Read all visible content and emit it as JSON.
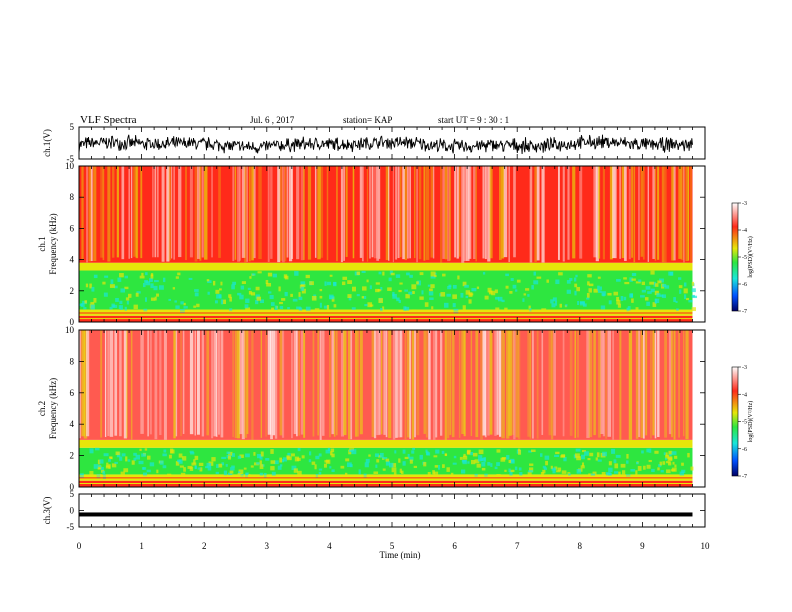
{
  "header": {
    "title": "VLF Spectra",
    "date": "Jul. 6 , 2017",
    "station": "station= KAP",
    "start": "start UT = 9 : 30 : 1"
  },
  "chart_data": [
    {
      "type": "line",
      "panel": "ch1-waveform",
      "ylabel": "ch.1(V)",
      "ylim": [
        -5,
        5
      ],
      "yticks": [
        "5",
        "-5"
      ],
      "xlim": [
        0,
        10
      ],
      "description_values": {
        "mean": -0.5,
        "amplitude": 1.8
      }
    },
    {
      "type": "heatmap",
      "panel": "ch1-spectrogram",
      "ylabel_line1": "ch.1",
      "ylabel_line2": "Frequency (kHz)",
      "ylim": [
        0,
        10
      ],
      "yticks": [
        "0",
        "2",
        "4",
        "6",
        "8",
        "10"
      ],
      "xlim": [
        0,
        10
      ],
      "data_end_min": 9.8,
      "bands": [
        {
          "from_khz": 0.0,
          "to_khz": 0.4,
          "log_psd": -3.6
        },
        {
          "from_khz": 0.4,
          "to_khz": 0.8,
          "log_psd": -4.2
        },
        {
          "from_khz": 0.8,
          "to_khz": 3.3,
          "log_psd": -5.3
        },
        {
          "from_khz": 3.3,
          "to_khz": 3.8,
          "log_psd": -4.6
        },
        {
          "from_khz": 3.8,
          "to_khz": 10.0,
          "log_psd": -3.9
        }
      ],
      "colorbar": {
        "label": "log(PSD)(V²/Hz)",
        "ticks": [
          "-3",
          "-4",
          "-5",
          "-6",
          "-7"
        ],
        "range": [
          -7,
          -3
        ]
      }
    },
    {
      "type": "heatmap",
      "panel": "ch2-spectrogram",
      "ylabel_line1": "ch.2",
      "ylabel_line2": "Frequency (kHz)",
      "ylim": [
        0,
        10
      ],
      "yticks": [
        "0",
        "2",
        "4",
        "6",
        "8",
        "10"
      ],
      "xlim": [
        0,
        10
      ],
      "data_end_min": 9.8,
      "bands": [
        {
          "from_khz": 0.0,
          "to_khz": 0.4,
          "log_psd": -3.7
        },
        {
          "from_khz": 0.4,
          "to_khz": 0.8,
          "log_psd": -4.3
        },
        {
          "from_khz": 0.8,
          "to_khz": 2.5,
          "log_psd": -5.2
        },
        {
          "from_khz": 2.5,
          "to_khz": 3.0,
          "log_psd": -4.5
        },
        {
          "from_khz": 3.0,
          "to_khz": 10.0,
          "log_psd": -3.3
        }
      ],
      "colorbar": {
        "label": "log(PSD)(V²/Hz)",
        "ticks": [
          "-3",
          "-4",
          "-5",
          "-6",
          "-7"
        ],
        "range": [
          -7,
          -3
        ]
      }
    },
    {
      "type": "line",
      "panel": "ch3-waveform",
      "ylabel": "ch.3(V)",
      "ylim": [
        -5,
        5
      ],
      "yticks": [
        "5",
        "0",
        "-5"
      ],
      "xlim": [
        0,
        10
      ],
      "description_values": {
        "mean": -1.2,
        "amplitude": 0.3
      }
    }
  ],
  "xaxis": {
    "label": "Time (min)",
    "ticks": [
      "0",
      "1",
      "2",
      "3",
      "4",
      "5",
      "6",
      "7",
      "8",
      "9",
      "10"
    ]
  },
  "colors": {
    "red": "#ff2a1a",
    "yellow": "#e6e60a",
    "green": "#2ee640",
    "cyan": "#19e6d9",
    "blue": "#0050ff",
    "navy": "#000064"
  }
}
